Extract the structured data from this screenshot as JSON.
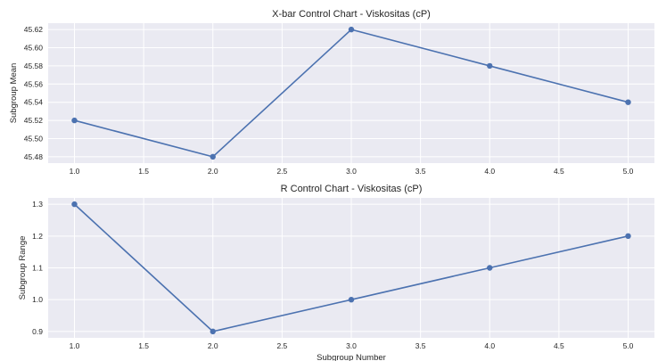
{
  "chart_data": [
    {
      "type": "line",
      "title": "X-bar Control Chart - Viskositas (cP)",
      "xlabel": "",
      "ylabel": "Subgroup Mean",
      "x": [
        1,
        2,
        3,
        4,
        5
      ],
      "series": [
        {
          "values": [
            45.52,
            45.48,
            45.62,
            45.58,
            45.54
          ]
        }
      ],
      "xlim": [
        0.81,
        5.19
      ],
      "ylim": [
        45.473,
        45.627
      ],
      "xticks": [
        "1.0",
        "1.5",
        "2.0",
        "2.5",
        "3.0",
        "3.5",
        "4.0",
        "4.5",
        "5.0"
      ],
      "yticks": [
        "45.48",
        "45.50",
        "45.52",
        "45.54",
        "45.56",
        "45.58",
        "45.60",
        "45.62"
      ],
      "grid": true,
      "color": "#4c72b0",
      "background": "#eaeaf2"
    },
    {
      "type": "line",
      "title": "R Control Chart - Viskositas (cP)",
      "xlabel": "Subgroup Number",
      "ylabel": "Subgroup Range",
      "x": [
        1,
        2,
        3,
        4,
        5
      ],
      "series": [
        {
          "values": [
            1.3,
            0.9,
            1.0,
            1.1,
            1.2
          ]
        }
      ],
      "xlim": [
        0.81,
        5.19
      ],
      "ylim": [
        0.88,
        1.32
      ],
      "xticks": [
        "1.0",
        "1.5",
        "2.0",
        "2.5",
        "3.0",
        "3.5",
        "4.0",
        "4.5",
        "5.0"
      ],
      "yticks": [
        "0.9",
        "1.0",
        "1.1",
        "1.2",
        "1.3"
      ],
      "grid": true,
      "color": "#4c72b0",
      "background": "#eaeaf2"
    }
  ]
}
